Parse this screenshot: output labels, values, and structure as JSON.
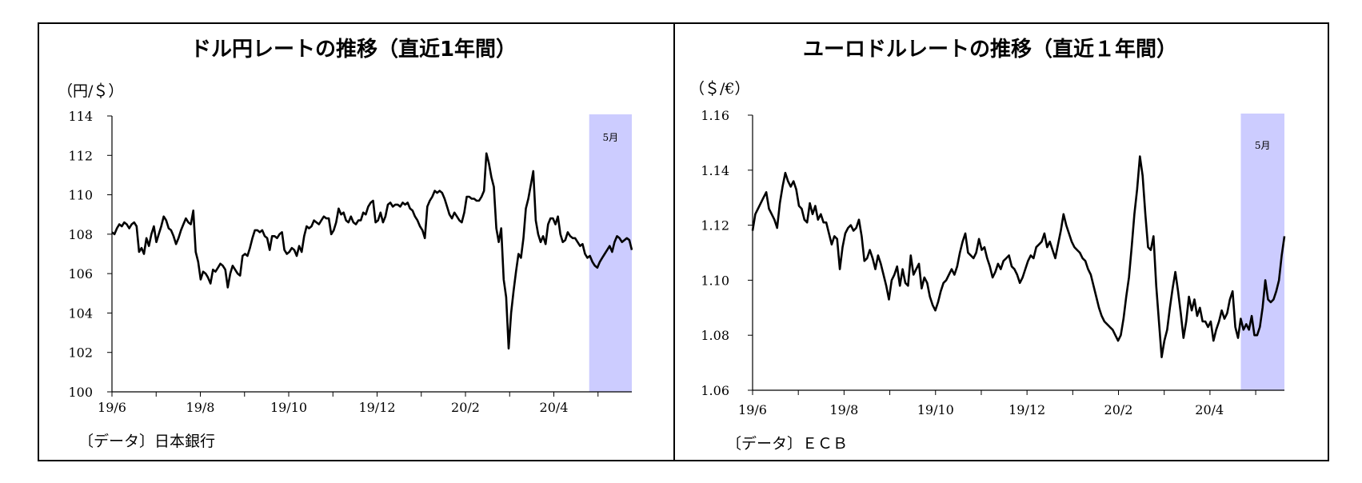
{
  "chart_data": [
    {
      "type": "line",
      "title": "ドル円レートの推移（直近1年間）",
      "ylabel": "（円/＄）",
      "ylim": [
        100,
        114
      ],
      "yticks": [
        "114",
        "112",
        "110",
        "108",
        "106",
        "104",
        "102",
        "100"
      ],
      "xticks": [
        "19/6",
        "19/8",
        "19/10",
        "19/12",
        "20/2",
        "20/4"
      ],
      "source": "〔データ〕日本銀行",
      "highlight": {
        "label": "5月",
        "color": "#ccccff"
      },
      "series": [
        {
          "values": [
            108.1,
            108.0,
            108.3,
            108.5,
            108.4,
            108.6,
            108.5,
            108.3,
            108.5,
            108.6,
            108.4,
            107.1,
            107.3,
            107.0,
            107.8,
            107.4,
            108.0,
            108.4,
            107.6,
            108.0,
            108.4,
            108.9,
            108.7,
            108.3,
            108.2,
            107.9,
            107.5,
            107.8,
            108.2,
            108.5,
            108.8,
            108.6,
            108.5,
            109.2,
            107.1,
            106.6,
            105.7,
            106.1,
            106.0,
            105.8,
            105.5,
            106.2,
            106.1,
            106.3,
            106.5,
            106.4,
            106.2,
            105.3,
            106.0,
            106.4,
            106.2,
            106.0,
            105.9,
            106.9,
            107.0,
            106.9,
            107.3,
            107.8,
            108.2,
            108.2,
            108.1,
            108.2,
            107.9,
            107.8,
            107.2,
            107.9,
            107.9,
            107.8,
            108.0,
            108.1,
            107.2,
            107.0,
            107.1,
            107.3,
            107.2,
            106.9,
            107.4,
            107.1,
            107.9,
            108.4,
            108.3,
            108.4,
            108.7,
            108.6,
            108.5,
            108.7,
            108.9,
            108.8,
            108.8,
            108.0,
            108.2,
            108.6,
            109.3,
            109.0,
            109.1,
            108.7,
            108.6,
            108.9,
            108.6,
            108.5,
            108.7,
            108.7,
            109.1,
            109.0,
            109.4,
            109.6,
            109.7,
            108.6,
            108.7,
            109.1,
            108.6,
            108.9,
            109.5,
            109.6,
            109.4,
            109.5,
            109.5,
            109.4,
            109.6,
            109.5,
            109.6,
            109.3,
            109.2,
            108.9,
            108.7,
            108.4,
            108.2,
            107.8,
            109.4,
            109.7,
            109.9,
            110.2,
            110.1,
            110.2,
            110.1,
            109.8,
            109.4,
            109.0,
            108.8,
            109.1,
            108.9,
            108.7,
            108.6,
            109.1,
            109.9,
            109.9,
            109.8,
            109.8,
            109.7,
            109.7,
            109.9,
            110.2,
            112.1,
            111.6,
            110.9,
            110.4,
            108.3,
            107.6,
            108.3,
            105.7,
            104.8,
            102.2,
            104.0,
            105.1,
            106.1,
            107.0,
            106.8,
            107.8,
            109.3,
            109.8,
            110.5,
            111.2,
            108.7,
            108.0,
            107.6,
            107.9,
            107.5,
            108.5,
            108.8,
            108.8,
            108.5,
            108.9,
            108.0,
            107.6,
            107.7,
            108.1,
            107.9,
            107.8,
            107.8,
            107.6,
            107.4,
            107.5,
            107.0,
            106.8,
            106.9,
            106.6,
            106.4,
            106.3,
            106.6,
            106.8,
            107.0,
            107.2,
            107.4,
            107.1,
            107.6,
            107.9,
            107.8,
            107.6,
            107.7,
            107.8,
            107.7,
            107.2
          ]
        }
      ]
    },
    {
      "type": "line",
      "title": "ユーロドルレートの推移（直近１年間）",
      "ylabel": "（＄/€）",
      "ylim": [
        1.06,
        1.16
      ],
      "yticks": [
        "1.16",
        "1.14",
        "1.12",
        "1.10",
        "1.08",
        "1.06"
      ],
      "xticks": [
        "19/6",
        "19/8",
        "19/10",
        "19/12",
        "20/2",
        "20/4"
      ],
      "source": "〔データ〕ＥＣＢ",
      "highlight": {
        "label": "5月",
        "color": "#ccccff"
      },
      "series": [
        {
          "values": [
            1.118,
            1.124,
            1.126,
            1.128,
            1.13,
            1.132,
            1.126,
            1.124,
            1.122,
            1.119,
            1.128,
            1.134,
            1.139,
            1.136,
            1.134,
            1.136,
            1.133,
            1.127,
            1.126,
            1.122,
            1.121,
            1.128,
            1.124,
            1.127,
            1.122,
            1.124,
            1.121,
            1.121,
            1.117,
            1.113,
            1.116,
            1.115,
            1.104,
            1.112,
            1.117,
            1.119,
            1.12,
            1.118,
            1.119,
            1.122,
            1.116,
            1.107,
            1.108,
            1.111,
            1.108,
            1.104,
            1.109,
            1.106,
            1.102,
            1.098,
            1.093,
            1.1,
            1.102,
            1.105,
            1.098,
            1.104,
            1.099,
            1.098,
            1.109,
            1.102,
            1.104,
            1.106,
            1.097,
            1.101,
            1.099,
            1.094,
            1.091,
            1.089,
            1.092,
            1.096,
            1.099,
            1.1,
            1.102,
            1.104,
            1.102,
            1.105,
            1.11,
            1.114,
            1.117,
            1.11,
            1.109,
            1.108,
            1.11,
            1.115,
            1.111,
            1.112,
            1.108,
            1.105,
            1.101,
            1.103,
            1.106,
            1.104,
            1.107,
            1.108,
            1.109,
            1.105,
            1.104,
            1.102,
            1.099,
            1.101,
            1.104,
            1.107,
            1.109,
            1.108,
            1.112,
            1.113,
            1.114,
            1.117,
            1.112,
            1.114,
            1.111,
            1.108,
            1.113,
            1.118,
            1.124,
            1.12,
            1.117,
            1.114,
            1.112,
            1.111,
            1.11,
            1.108,
            1.107,
            1.104,
            1.102,
            1.098,
            1.094,
            1.09,
            1.087,
            1.085,
            1.084,
            1.083,
            1.082,
            1.08,
            1.078,
            1.08,
            1.086,
            1.094,
            1.101,
            1.112,
            1.124,
            1.133,
            1.145,
            1.138,
            1.124,
            1.112,
            1.111,
            1.116,
            1.098,
            1.085,
            1.072,
            1.078,
            1.082,
            1.09,
            1.097,
            1.103,
            1.096,
            1.088,
            1.079,
            1.085,
            1.094,
            1.089,
            1.093,
            1.087,
            1.09,
            1.085,
            1.085,
            1.083,
            1.085,
            1.078,
            1.082,
            1.085,
            1.089,
            1.086,
            1.088,
            1.093,
            1.096,
            1.083,
            1.079,
            1.086,
            1.082,
            1.084,
            1.082,
            1.087,
            1.08,
            1.08,
            1.083,
            1.09,
            1.1,
            1.093,
            1.092,
            1.093,
            1.096,
            1.1,
            1.109,
            1.116
          ]
        }
      ]
    }
  ]
}
